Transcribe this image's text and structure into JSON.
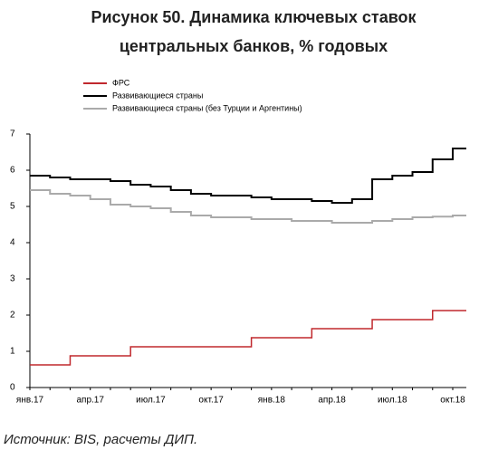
{
  "chart_data": {
    "type": "line",
    "title": [
      "Рисунок 50. Динамика ключевых ставок",
      "центральных банков, % годовых"
    ],
    "source": "Источник: BIS, расчеты ДИП.",
    "categories": [
      "янв.17",
      null,
      null,
      "апр.17",
      null,
      null,
      "июл.17",
      null,
      null,
      "окт.17",
      null,
      null,
      "янв.18",
      null,
      null,
      "апр.18",
      null,
      null,
      "июл.18",
      null,
      null,
      "окт.18"
    ],
    "step": true,
    "series": [
      {
        "name": "ФРС",
        "color": "#c0282d",
        "values": [
          0.625,
          0.625,
          0.875,
          0.875,
          0.875,
          1.125,
          1.125,
          1.125,
          1.125,
          1.125,
          1.125,
          1.375,
          1.375,
          1.375,
          1.625,
          1.625,
          1.625,
          1.875,
          1.875,
          1.875,
          2.125,
          2.125
        ]
      },
      {
        "name": "Развивающиеся страны",
        "color": "#000000",
        "values": [
          5.85,
          5.8,
          5.75,
          5.75,
          5.7,
          5.6,
          5.55,
          5.45,
          5.35,
          5.3,
          5.3,
          5.25,
          5.2,
          5.2,
          5.15,
          5.1,
          5.2,
          5.75,
          5.85,
          5.95,
          6.3,
          6.6
        ]
      },
      {
        "name": "Развивающиеся страны (без Турции и Аргентины)",
        "color": "#aaaaaa",
        "values": [
          5.45,
          5.35,
          5.3,
          5.2,
          5.05,
          5.0,
          4.95,
          4.85,
          4.75,
          4.7,
          4.7,
          4.65,
          4.65,
          4.6,
          4.6,
          4.55,
          4.55,
          4.6,
          4.65,
          4.7,
          4.72,
          4.75
        ]
      }
    ],
    "ylim": [
      0,
      7
    ],
    "yticks": [
      0,
      1,
      2,
      3,
      4,
      5,
      6,
      7
    ],
    "grid": false
  }
}
